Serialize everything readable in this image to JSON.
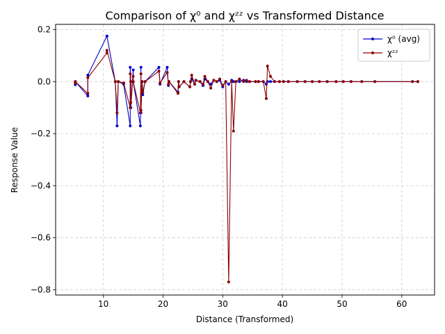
{
  "chart_data": {
    "type": "line",
    "title": "Comparison of χ⁰ and χᶻᶻ vs Transformed Distance",
    "xlabel": "Distance (Transformed)",
    "ylabel": "Response Value",
    "xlim": [
      2.0,
      65.5
    ],
    "ylim": [
      -0.82,
      0.22
    ],
    "xticks": [
      10,
      20,
      30,
      40,
      50,
      60
    ],
    "yticks": [
      -0.8,
      -0.6,
      -0.4,
      -0.2,
      0.0,
      0.2
    ],
    "xtick_labels": [
      "10",
      "20",
      "30",
      "40",
      "50",
      "60"
    ],
    "ytick_labels": [
      "−0.8",
      "−0.6",
      "−0.4",
      "−0.2",
      "0.0",
      "0.2"
    ],
    "grid": true,
    "legend_position": "top-right",
    "series": [
      {
        "name": "χ⁰ (avg)",
        "color": "#0000cc",
        "x": [
          5.3,
          5.3,
          7.4,
          7.4,
          10.6,
          10.6,
          12.0,
          12.3,
          12.5,
          13.4,
          14.5,
          14.5,
          14.6,
          14.6,
          15.0,
          15.0,
          16.2,
          16.3,
          16.3,
          16.5,
          16.6,
          17.0,
          19.3,
          19.5,
          20.7,
          20.9,
          21.0,
          22.5,
          22.6,
          22.7,
          23.5,
          24.5,
          24.6,
          24.8,
          25.3,
          25.5,
          26.2,
          26.7,
          27.0,
          27.5,
          28.0,
          28.5,
          29.0,
          29.5,
          30.0,
          30.5,
          31.0,
          31.5,
          31.8,
          32.2,
          32.8,
          33.5,
          34.0,
          34.5,
          35.5,
          36.0,
          36.8,
          37.3,
          37.5,
          38.0,
          38.7,
          39.5,
          40.2,
          41.0,
          42.5,
          43.8,
          45.0,
          46.2,
          47.5,
          49.0,
          50.2,
          51.5,
          53.3,
          55.5,
          61.8,
          62.7
        ],
        "y": [
          -0.012,
          0.0,
          -0.055,
          0.025,
          0.175,
          0.175,
          0.0,
          -0.17,
          0.0,
          -0.01,
          -0.17,
          0.055,
          0.0,
          -0.1,
          0.045,
          0.0,
          -0.17,
          0.055,
          -0.12,
          0.0,
          -0.05,
          0.0,
          0.055,
          -0.01,
          0.055,
          -0.015,
          0.0,
          -0.04,
          0.0,
          -0.02,
          0.0,
          -0.02,
          0.0,
          0.01,
          -0.01,
          0.005,
          0.0,
          -0.015,
          0.01,
          0.0,
          -0.01,
          0.005,
          0.0,
          0.005,
          -0.02,
          0.0,
          -0.01,
          0.005,
          0.0,
          0.0,
          0.0,
          0.005,
          0.0,
          0.0,
          0.0,
          0.0,
          0.0,
          -0.01,
          0.0,
          0.0,
          0.0,
          0.0,
          0.0,
          0.0,
          0.0,
          0.0,
          0.0,
          0.0,
          0.0,
          0.0,
          0.0,
          0.0,
          0.0,
          0.0,
          0.0,
          0.0
        ]
      },
      {
        "name": "χᶻᶻ",
        "color": "#8b0000",
        "x": [
          5.3,
          5.3,
          7.4,
          7.4,
          10.6,
          10.6,
          12.0,
          12.3,
          12.5,
          13.4,
          14.5,
          14.5,
          14.6,
          14.6,
          15.0,
          15.0,
          16.2,
          16.3,
          16.3,
          16.5,
          16.6,
          17.0,
          19.3,
          19.5,
          20.7,
          20.9,
          21.0,
          22.5,
          22.6,
          22.7,
          23.5,
          24.5,
          24.6,
          24.8,
          25.3,
          25.5,
          26.2,
          26.7,
          27.0,
          27.5,
          28.0,
          28.5,
          29.0,
          29.5,
          30.0,
          30.5,
          31.0,
          31.5,
          31.8,
          32.2,
          32.8,
          33.5,
          34.0,
          34.5,
          35.5,
          36.0,
          36.8,
          37.3,
          37.5,
          38.0,
          38.7,
          39.5,
          40.2,
          41.0,
          42.5,
          43.8,
          45.0,
          46.2,
          47.5,
          49.0,
          50.2,
          51.5,
          53.3,
          55.5,
          61.8,
          62.7
        ],
        "y": [
          -0.005,
          0.0,
          -0.045,
          0.015,
          0.11,
          0.12,
          0.0,
          -0.12,
          0.0,
          -0.005,
          -0.1,
          0.03,
          0.0,
          -0.08,
          0.02,
          0.0,
          -0.12,
          0.03,
          -0.11,
          0.0,
          -0.04,
          0.0,
          0.04,
          -0.005,
          0.035,
          -0.01,
          0.0,
          -0.045,
          0.0,
          -0.02,
          0.0,
          -0.02,
          0.0,
          0.025,
          -0.01,
          0.005,
          0.0,
          -0.01,
          0.02,
          0.0,
          -0.025,
          0.005,
          0.0,
          0.01,
          -0.015,
          0.0,
          -0.77,
          0.0,
          -0.19,
          0.0,
          0.01,
          0.0,
          0.005,
          0.0,
          0.0,
          0.0,
          0.0,
          -0.065,
          0.06,
          0.02,
          0.0,
          0.0,
          0.0,
          0.0,
          0.0,
          0.0,
          0.0,
          0.0,
          0.0,
          0.0,
          0.0,
          0.0,
          0.0,
          0.0,
          0.0,
          0.0
        ]
      }
    ]
  }
}
